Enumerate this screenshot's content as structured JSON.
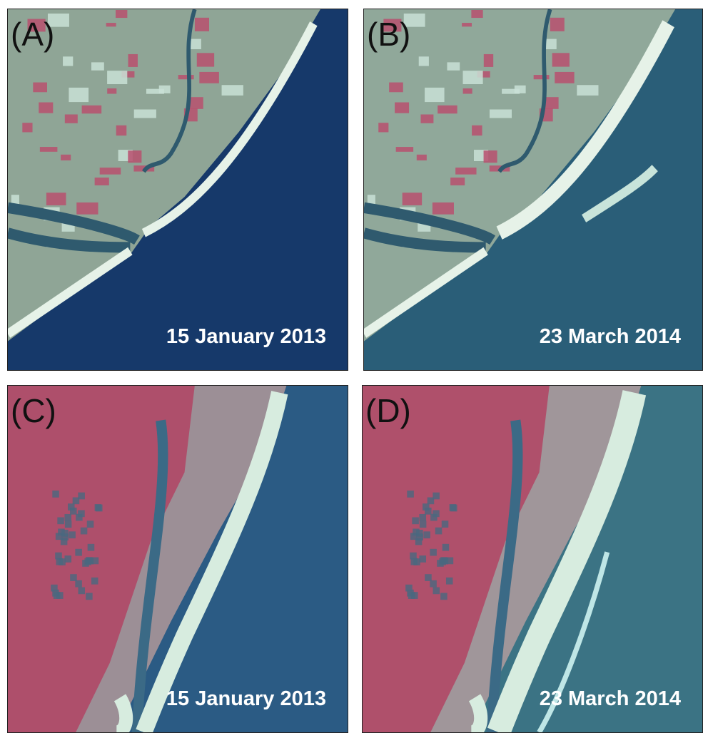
{
  "panels": [
    {
      "label": "(A)",
      "date": "15 January 2013"
    },
    {
      "label": "(B)",
      "date": "23 March 2014"
    },
    {
      "label": "(C)",
      "date": "15 January 2013"
    },
    {
      "label": "(D)",
      "date": "23 March 2014"
    }
  ]
}
